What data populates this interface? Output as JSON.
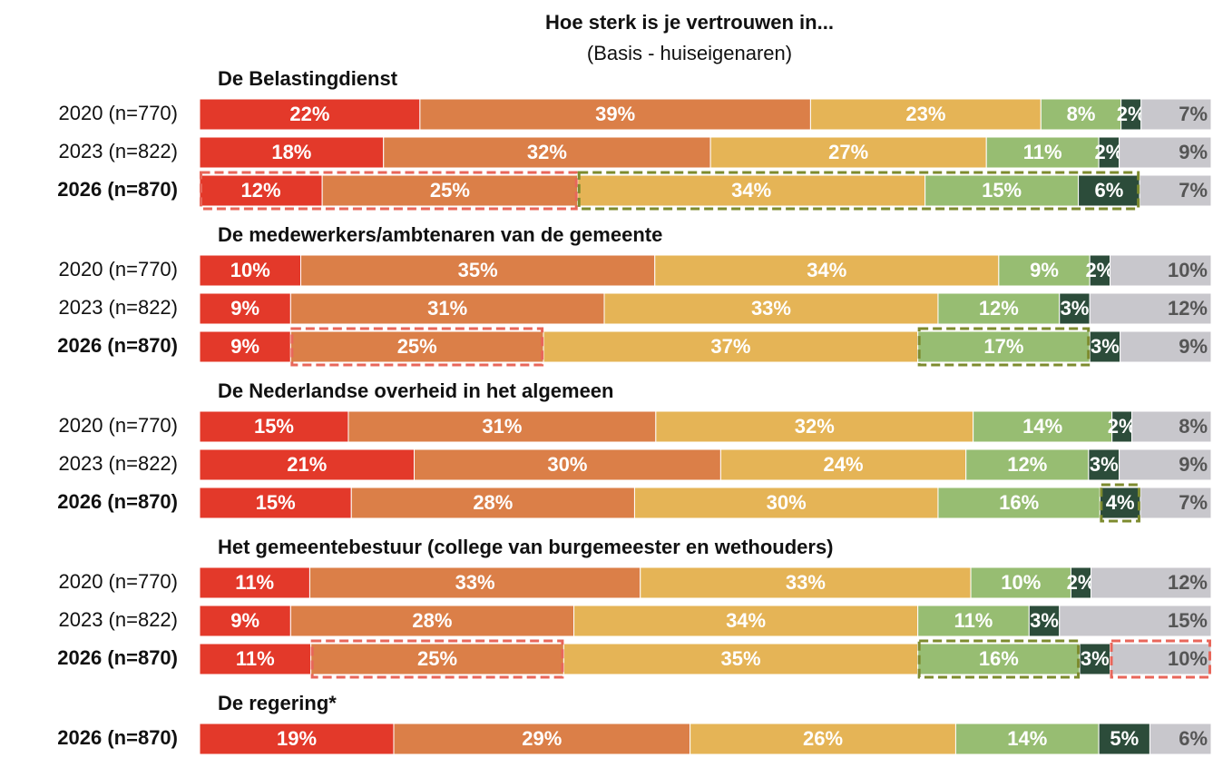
{
  "chart_data": {
    "type": "stacked_bar",
    "title": "Hoe sterk is je vertrouwen in...",
    "subtitle": "(Basis - huiseigenaren)",
    "colors": [
      "#e3392a",
      "#db7f48",
      "#e5b456",
      "#97bd72",
      "#2c4c3a",
      "#c8c7cc"
    ],
    "groups": [
      {
        "title": "De Belastingdienst",
        "rows": [
          {
            "label": "2020 (n=770)",
            "values": [
              22,
              39,
              23,
              8,
              2,
              7
            ],
            "value_labels": [
              "22%",
              "39%",
              "23%",
              "8%",
              "2%",
              "7%"
            ]
          },
          {
            "label": "2023 (n=822)",
            "values": [
              18,
              32,
              27,
              11,
              2,
              9
            ],
            "value_labels": [
              "18%",
              "32%",
              "27%",
              "11%",
              "2%",
              "9%"
            ]
          },
          {
            "label": "2026 (n=870)",
            "bold": true,
            "values": [
              12,
              25,
              34,
              15,
              6,
              7
            ],
            "value_labels": [
              "12%",
              "25%",
              "34%",
              "15%",
              "6%",
              "7%"
            ],
            "highlights": [
              {
                "segments": [
                  0,
                  1
                ],
                "color": "#e8665a"
              },
              {
                "segments": [
                  2,
                  4
                ],
                "color": "#7d8b2e"
              }
            ]
          }
        ]
      },
      {
        "title": "De medewerkers/ambtenaren van de gemeente",
        "rows": [
          {
            "label": "2020 (n=770)",
            "values": [
              10,
              35,
              34,
              9,
              2,
              10
            ],
            "value_labels": [
              "10%",
              "35%",
              "34%",
              "9%",
              "2%",
              "10%"
            ]
          },
          {
            "label": "2023 (n=822)",
            "values": [
              9,
              31,
              33,
              12,
              3,
              12
            ],
            "value_labels": [
              "9%",
              "31%",
              "33%",
              "12%",
              "3%",
              "12%"
            ]
          },
          {
            "label": "2026 (n=870)",
            "bold": true,
            "values": [
              9,
              25,
              37,
              17,
              3,
              9
            ],
            "value_labels": [
              "9%",
              "25%",
              "37%",
              "17%",
              "3%",
              "9%"
            ],
            "highlights": [
              {
                "segments": [
                  1,
                  1
                ],
                "color": "#e8665a"
              },
              {
                "segments": [
                  3,
                  3
                ],
                "color": "#7d8b2e"
              }
            ]
          }
        ]
      },
      {
        "title": "De Nederlandse overheid in het algemeen",
        "rows": [
          {
            "label": "2020 (n=770)",
            "values": [
              15,
              31,
              32,
              14,
              2,
              8
            ],
            "value_labels": [
              "15%",
              "31%",
              "32%",
              "14%",
              "2%",
              "8%"
            ]
          },
          {
            "label": "2023 (n=822)",
            "values": [
              21,
              30,
              24,
              12,
              3,
              9
            ],
            "value_labels": [
              "21%",
              "30%",
              "24%",
              "12%",
              "3%",
              "9%"
            ]
          },
          {
            "label": "2026 (n=870)",
            "bold": true,
            "values": [
              15,
              28,
              30,
              16,
              4,
              7
            ],
            "value_labels": [
              "15%",
              "28%",
              "30%",
              "16%",
              "4%",
              "7%"
            ],
            "highlights": [
              {
                "segments": [
                  4,
                  4
                ],
                "color": "#7d8b2e"
              }
            ]
          }
        ]
      },
      {
        "title": "Het gemeentebestuur (college van burgemeester en wethouders)",
        "rows": [
          {
            "label": "2020 (n=770)",
            "values": [
              11,
              33,
              33,
              10,
              2,
              12
            ],
            "value_labels": [
              "11%",
              "33%",
              "33%",
              "10%",
              "2%",
              "12%"
            ]
          },
          {
            "label": "2023 (n=822)",
            "values": [
              9,
              28,
              34,
              11,
              3,
              15
            ],
            "value_labels": [
              "9%",
              "28%",
              "34%",
              "11%",
              "3%",
              "15%"
            ]
          },
          {
            "label": "2026 (n=870)",
            "bold": true,
            "values": [
              11,
              25,
              35,
              16,
              3,
              10
            ],
            "value_labels": [
              "11%",
              "25%",
              "35%",
              "16%",
              "3%",
              "10%"
            ],
            "highlights": [
              {
                "segments": [
                  1,
                  1
                ],
                "color": "#e8665a"
              },
              {
                "segments": [
                  3,
                  3
                ],
                "color": "#7d8b2e"
              },
              {
                "segments": [
                  5,
                  5
                ],
                "color": "#e8665a"
              }
            ]
          }
        ]
      },
      {
        "title": "De regering*",
        "rows": [
          {
            "label": "2026 (n=870)",
            "bold": true,
            "values": [
              19,
              29,
              26,
              14,
              5,
              6
            ],
            "value_labels": [
              "19%",
              "29%",
              "26%",
              "14%",
              "5%",
              "6%"
            ]
          }
        ]
      }
    ]
  }
}
